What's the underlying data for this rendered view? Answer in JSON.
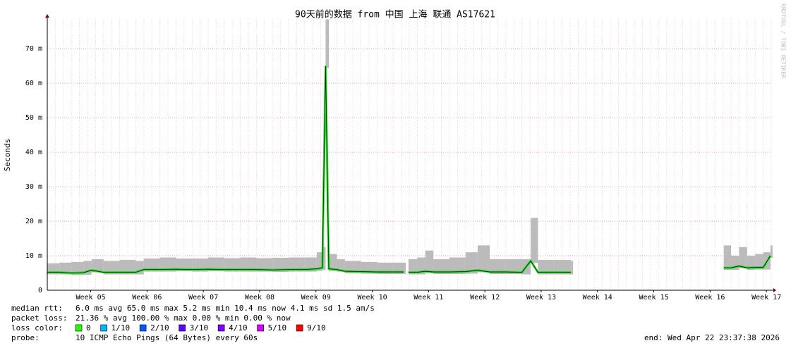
{
  "chart_data": {
    "type": "line",
    "title": "90天前的数据 from  中国 上海 联通 AS17621",
    "ylabel": "Seconds",
    "watermark": "RRDTOOL / TOBI OETIKER",
    "grid": true,
    "xlim": [
      0,
      90
    ],
    "xticks": [
      {
        "value": 5.4,
        "label": "Week 05"
      },
      {
        "value": 12.4,
        "label": "Week 06"
      },
      {
        "value": 19.4,
        "label": "Week 07"
      },
      {
        "value": 26.4,
        "label": "Week 08"
      },
      {
        "value": 33.4,
        "label": "Week 09"
      },
      {
        "value": 40.4,
        "label": "Week 10"
      },
      {
        "value": 47.4,
        "label": "Week 11"
      },
      {
        "value": 54.4,
        "label": "Week 12"
      },
      {
        "value": 61.4,
        "label": "Week 13"
      },
      {
        "value": 68.4,
        "label": "Week 14"
      },
      {
        "value": 75.4,
        "label": "Week 15"
      },
      {
        "value": 82.4,
        "label": "Week 16"
      },
      {
        "value": 89.4,
        "label": "Week 17"
      }
    ],
    "ylim": [
      0,
      0.0786
    ],
    "yticks": [
      0,
      {
        "value": 0.01,
        "label": "10 m"
      },
      {
        "value": 0.02,
        "label": "20 m"
      },
      {
        "value": 0.03,
        "label": "30 m"
      },
      {
        "value": 0.04,
        "label": "40 m"
      },
      {
        "value": 0.05,
        "label": "50 m"
      },
      {
        "value": 0.06,
        "label": "60 m"
      },
      {
        "value": 0.07,
        "label": "70 m"
      }
    ],
    "x": [
      0,
      1.5,
      3,
      4.5,
      5.5,
      7,
      9,
      11,
      12,
      14,
      16,
      18,
      20,
      22,
      24,
      26,
      28,
      30,
      32,
      33.5,
      34.2,
      34.6,
      35,
      36,
      37,
      39,
      41,
      43,
      44.3,
      44.6,
      44.9,
      46,
      47,
      48,
      50,
      52,
      53.5,
      55,
      57,
      59,
      60.1,
      61,
      63,
      65.1,
      75,
      84.1,
      85,
      86,
      87,
      88,
      89,
      89.9
    ],
    "series": [
      {
        "name": "median rtt:",
        "color": "#22dd22",
        "values": [
          0.0052,
          0.0052,
          0.005,
          0.0051,
          0.0058,
          0.0052,
          0.0052,
          0.0052,
          0.006,
          0.006,
          0.0061,
          0.006,
          0.0061,
          0.006,
          0.006,
          0.006,
          0.0059,
          0.006,
          0.006,
          0.0062,
          0.0065,
          0.065,
          0.0062,
          0.006,
          0.0055,
          0.0054,
          0.0053,
          0.0053,
          0.0053,
          null,
          0.0052,
          0.0052,
          0.0055,
          0.0053,
          0.0053,
          0.0054,
          0.0058,
          0.0053,
          0.0053,
          0.0052,
          0.0085,
          0.0052,
          0.0052,
          0.0052,
          null,
          0.0065,
          0.0065,
          0.007,
          0.0065,
          0.0066,
          0.0066,
          0.01
        ]
      }
    ],
    "smoke_max": {
      "color": "#bbbbbb",
      "values": [
        0.0078,
        0.008,
        0.0082,
        0.0085,
        0.009,
        0.0085,
        0.0088,
        0.0085,
        0.0092,
        0.0095,
        0.0092,
        0.0092,
        0.0095,
        0.0093,
        0.0095,
        0.0093,
        0.0094,
        0.0095,
        0.0095,
        0.011,
        0.0125,
        0.0785,
        0.0105,
        0.009,
        0.0085,
        0.0082,
        0.008,
        0.008,
        0.008,
        null,
        0.009,
        0.0095,
        0.0115,
        0.009,
        0.0095,
        0.011,
        0.013,
        0.009,
        0.009,
        0.009,
        0.021,
        0.0088,
        0.0088,
        0.0085,
        null,
        0.013,
        0.01,
        0.0125,
        0.01,
        0.0105,
        0.011,
        0.013
      ]
    },
    "rtt_stats": "6.0 ms avg  65.0 ms max  5.2 ms min  10.4 ms now  4.1 ms sd  1.5   am/s",
    "packet_loss": {
      "label": "packet loss:",
      "text": "21.36 % avg  100.00 % max  0.00 % min  0.00 % now"
    },
    "loss_color": {
      "label": "loss color:",
      "items": [
        {
          "label": "0",
          "color": "#26ff00"
        },
        {
          "label": "1/10",
          "color": "#00b8ff"
        },
        {
          "label": "2/10",
          "color": "#0059ff"
        },
        {
          "label": "3/10",
          "color": "#5e00ff"
        },
        {
          "label": "4/10",
          "color": "#7e00ff"
        },
        {
          "label": "5/10",
          "color": "#dd00ff"
        },
        {
          "label": "9/10",
          "color": "#ff0000"
        }
      ]
    },
    "probe": {
      "label": "probe:",
      "text": "10 ICMP Echo Pings (64 Bytes) every 60s"
    },
    "end": "end: Wed Apr 22 23:37:38 2026"
  }
}
